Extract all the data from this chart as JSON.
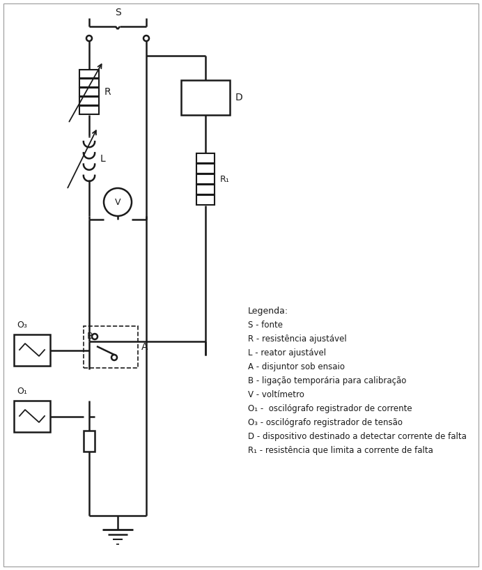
{
  "bg_color": "#ffffff",
  "line_color": "#1a1a1a",
  "lw": 1.8,
  "fig_width": 6.92,
  "fig_height": 8.18,
  "legend_title": "Legenda:",
  "legend_items": [
    "S - fonte",
    "R - resistência ajustável",
    "L - reator ajustável",
    "A - disjuntor sob ensaio",
    "B - ligação temporária para calibração",
    "V - voltímetro",
    "O₁ -  oscilógrafo registrador de corrente",
    "O₃ - oscilógrafo registrador de tensão",
    "D - dispositivo destinado a detectar corrente de falta",
    "R₁ - resistência que limita a corrente de falta"
  ]
}
